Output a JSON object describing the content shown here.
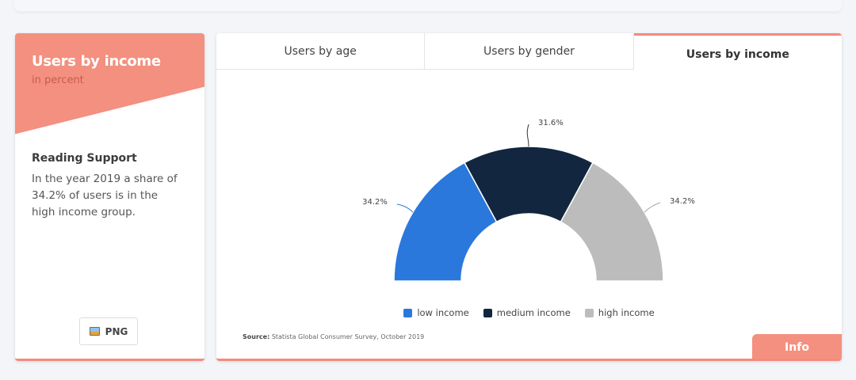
{
  "sidebar": {
    "title": "Users by income",
    "subtitle": "in percent",
    "support_heading": "Reading Support",
    "support_text": "In the year 2019 a share of 34.2% of users is in the high income group.",
    "png_label": "PNG"
  },
  "tabs": [
    {
      "label": "Users by age"
    },
    {
      "label": "Users by gender"
    },
    {
      "label": "Users by income"
    }
  ],
  "source": {
    "prefix": "Source:",
    "text": "Statista Global Consumer Survey, October 2019"
  },
  "info_label": "Info",
  "colors": {
    "accent": "#f4907f",
    "low": "#2a78dc",
    "medium": "#12263f",
    "high": "#bcbcbc"
  },
  "chart_data": {
    "type": "pie",
    "variant": "semi-donut",
    "title": "Users by income",
    "subtitle": "in percent",
    "series": [
      {
        "name": "low income",
        "value": 34.2,
        "label": "34.2%",
        "color": "#2a78dc"
      },
      {
        "name": "medium income",
        "value": 31.6,
        "label": "31.6%",
        "color": "#12263f"
      },
      {
        "name": "high income",
        "value": 34.2,
        "label": "34.2%",
        "color": "#bcbcbc"
      }
    ],
    "legend": "bottom-center"
  }
}
